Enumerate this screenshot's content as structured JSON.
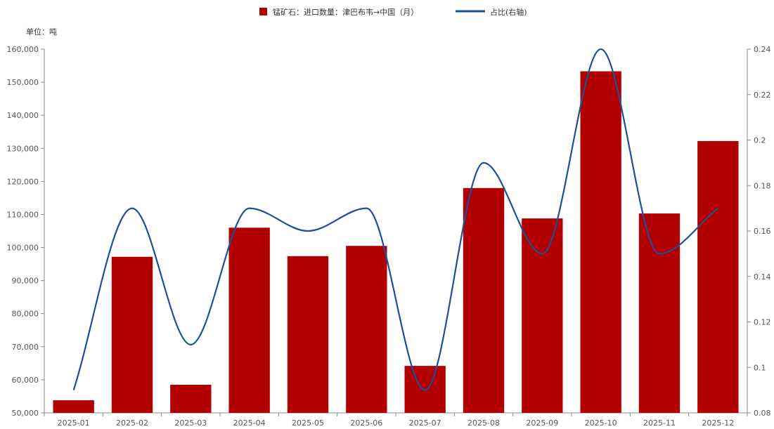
{
  "chart_data": {
    "type": "bar",
    "unit_label": "单位：吨",
    "categories": [
      "2025-01",
      "2025-02",
      "2025-03",
      "2025-04",
      "2025-05",
      "2025-06",
      "2025-07",
      "2025-08",
      "2025-09",
      "2025-10",
      "2025-11",
      "2025-12"
    ],
    "series": [
      {
        "name": "锰矿石：进口数量：津巴布韦→中国（月）",
        "type": "bar",
        "axis": "left",
        "color": "#b20000",
        "values": [
          53800,
          97200,
          58500,
          106000,
          97400,
          100500,
          64200,
          118000,
          108800,
          153300,
          110300,
          132200
        ]
      },
      {
        "name": "占比(右轴)",
        "type": "line",
        "axis": "right",
        "color": "#1f4e9c",
        "smooth": true,
        "values": [
          0.09,
          0.17,
          0.11,
          0.17,
          0.16,
          0.17,
          0.09,
          0.19,
          0.15,
          0.24,
          0.15,
          0.17
        ]
      }
    ],
    "y_left": {
      "min": 50000,
      "max": 160000,
      "ticks": [
        "50,000",
        "60,000",
        "70,000",
        "80,000",
        "90,000",
        "100,000",
        "110,000",
        "120,000",
        "130,000",
        "140,000",
        "150,000",
        "160,000"
      ]
    },
    "y_right": {
      "min": 0.08,
      "max": 0.24,
      "ticks": [
        "0.08",
        "0.1",
        "0.12",
        "0.14",
        "0.16",
        "0.18",
        "0.2",
        "0.22",
        "0.24"
      ]
    },
    "grid": false,
    "legend_position": "top-center"
  }
}
